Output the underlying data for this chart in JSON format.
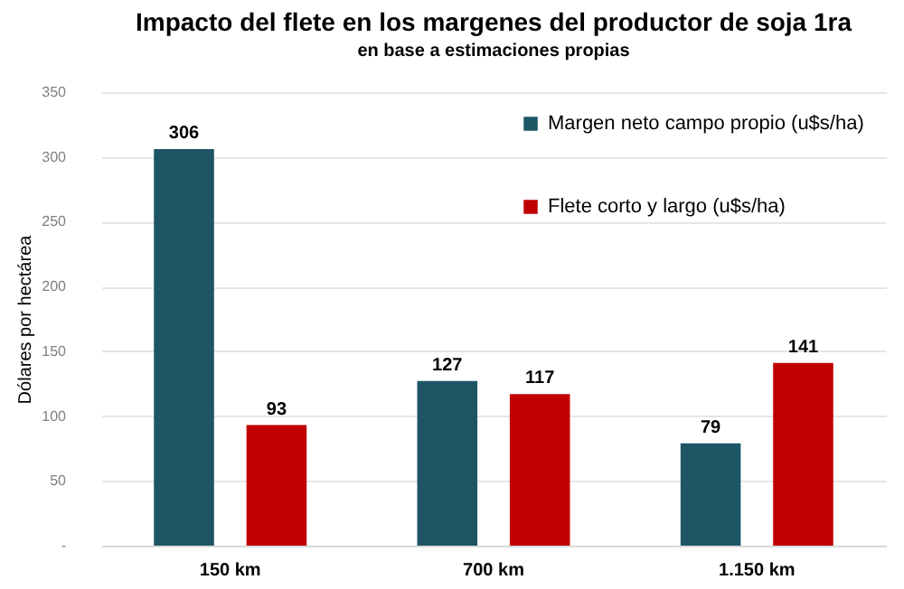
{
  "chart_data": {
    "type": "bar",
    "title": "Impacto del flete en los margenes del productor de soja 1ra",
    "subtitle": "en base a estimaciones propias",
    "ylabel": "Dólares por hectárea",
    "categories": [
      "150 km",
      "700 km",
      "1.150 km"
    ],
    "series": [
      {
        "name": "Margen neto campo propio (u$s/ha)",
        "color": "#1d5565",
        "values": [
          306,
          127,
          79
        ]
      },
      {
        "name": "Flete corto y largo (u$s/ha)",
        "color": "#c00000",
        "values": [
          93,
          117,
          141
        ]
      }
    ],
    "ylim": [
      0,
      350
    ],
    "yticks": [
      {
        "value": 0,
        "label": "-"
      },
      50,
      100,
      150,
      200,
      250,
      300,
      350
    ],
    "grid": "y",
    "legend": "top right",
    "data_labels": true
  }
}
